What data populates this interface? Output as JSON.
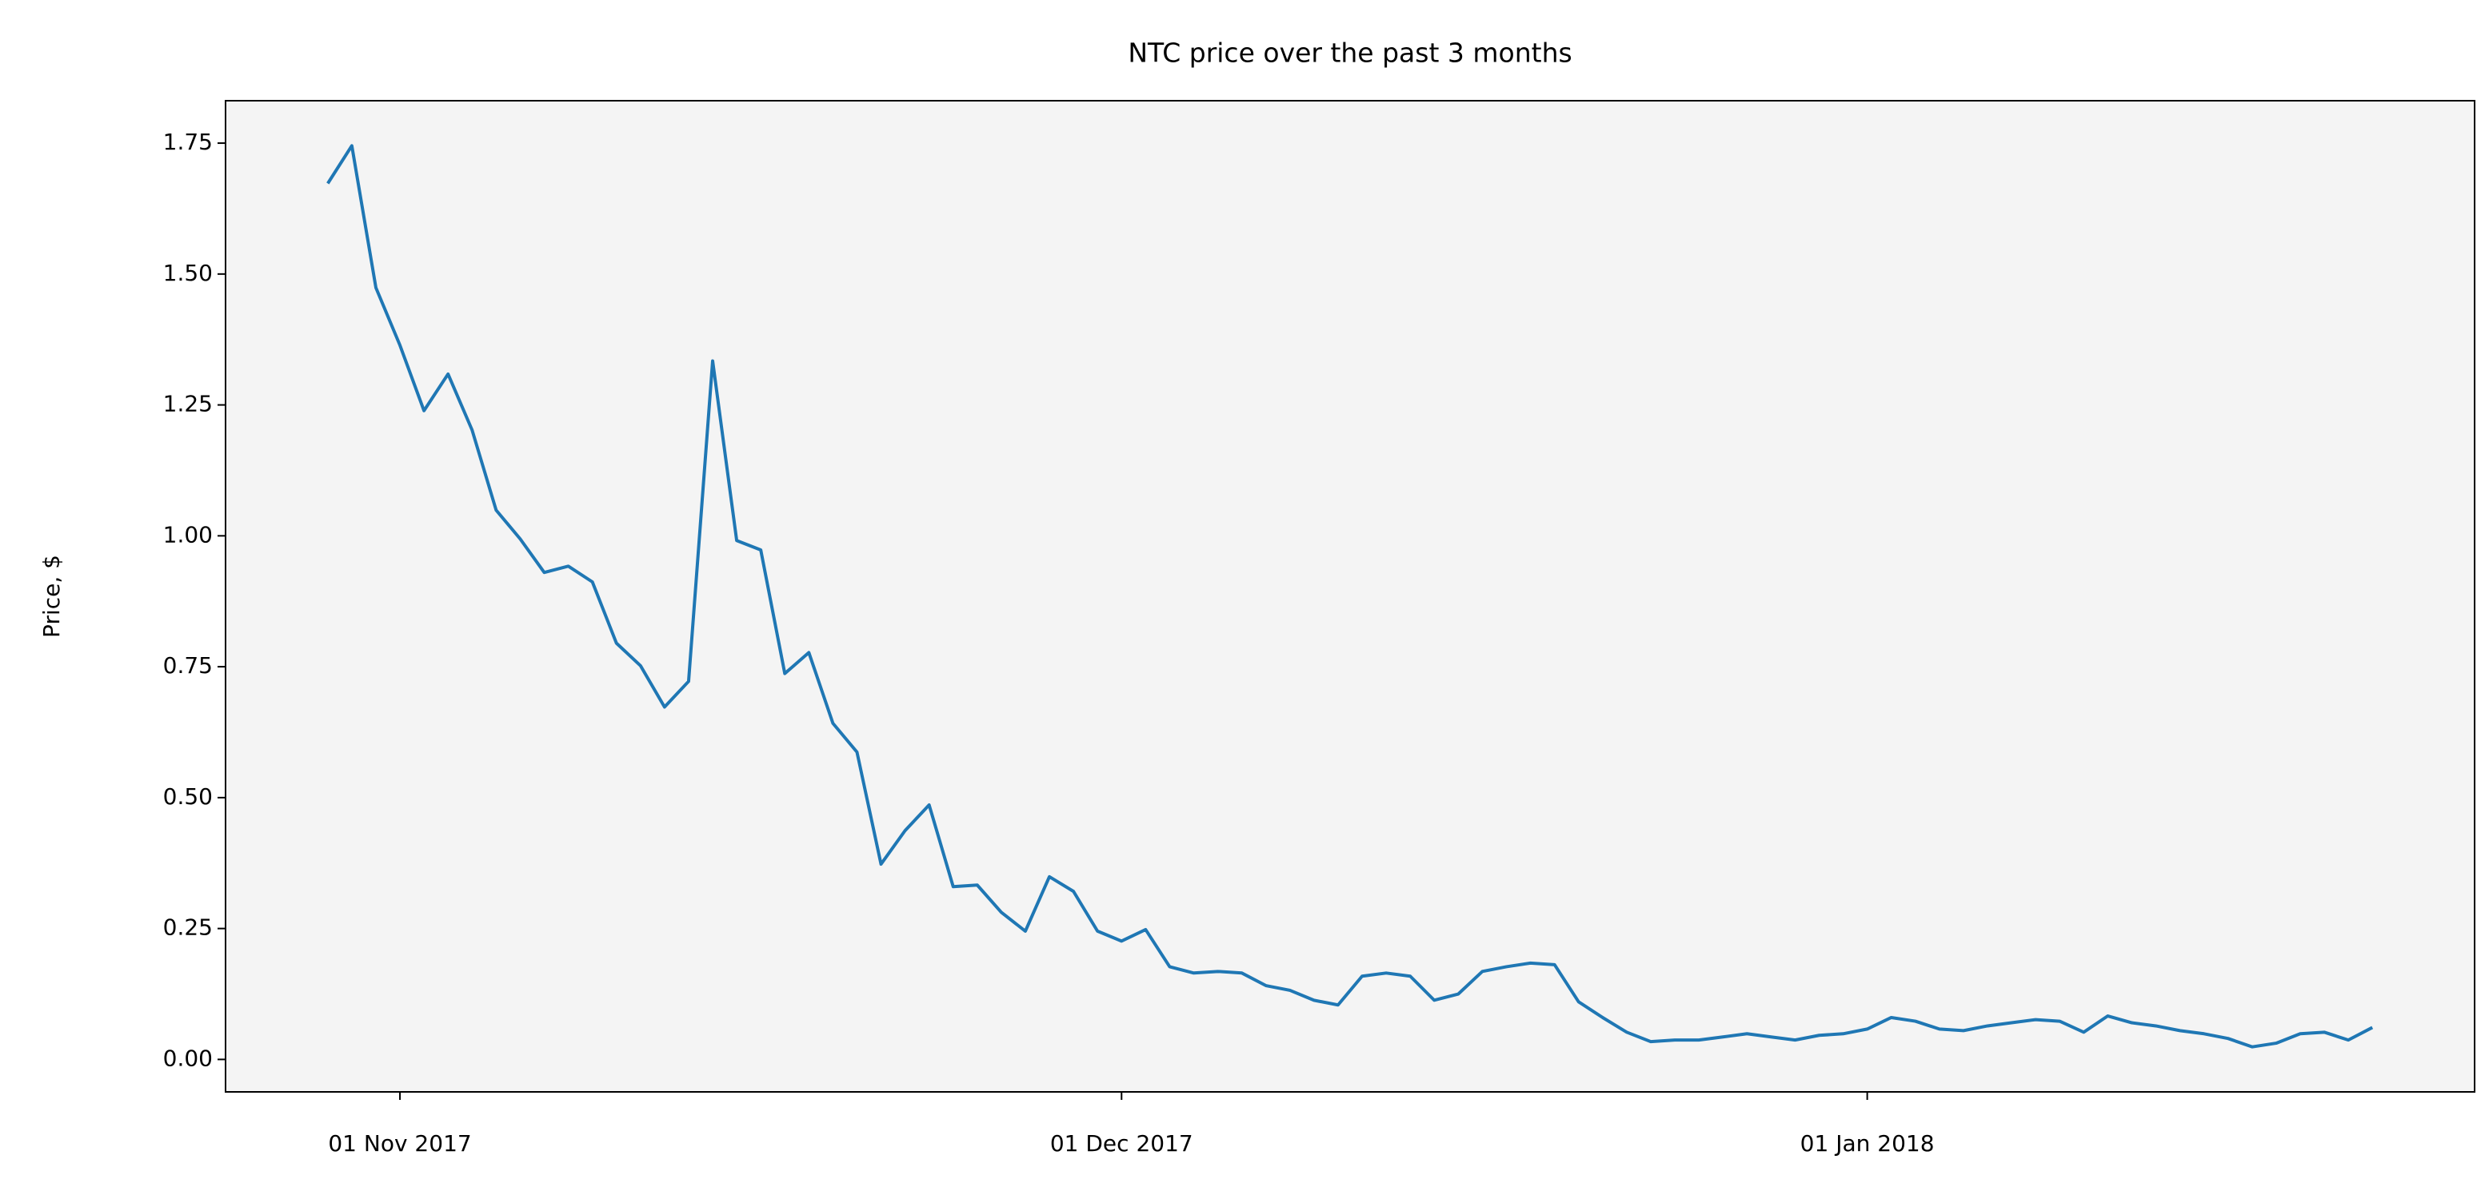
{
  "chart_data": {
    "type": "line",
    "title": "NTC price over the past 3 months",
    "y_label": "Price, $",
    "x": [
      "2017-10-29",
      "2017-10-30",
      "2017-10-31",
      "2017-11-01",
      "2017-11-02",
      "2017-11-03",
      "2017-11-04",
      "2017-11-05",
      "2017-11-06",
      "2017-11-07",
      "2017-11-08",
      "2017-11-09",
      "2017-11-10",
      "2017-11-11",
      "2017-11-12",
      "2017-11-13",
      "2017-11-14",
      "2017-11-15",
      "2017-11-16",
      "2017-11-17",
      "2017-11-18",
      "2017-11-19",
      "2017-11-20",
      "2017-11-21",
      "2017-11-22",
      "2017-11-23",
      "2017-11-24",
      "2017-11-25",
      "2017-11-26",
      "2017-11-27",
      "2017-11-28",
      "2017-11-29",
      "2017-11-30",
      "2017-12-01",
      "2017-12-02",
      "2017-12-03",
      "2017-12-04",
      "2017-12-05",
      "2017-12-06",
      "2017-12-07",
      "2017-12-08",
      "2017-12-09",
      "2017-12-10",
      "2017-12-11",
      "2017-12-12",
      "2017-12-13",
      "2017-12-14",
      "2017-12-15",
      "2017-12-16",
      "2017-12-17",
      "2017-12-18",
      "2017-12-19",
      "2017-12-20",
      "2017-12-21",
      "2017-12-22",
      "2017-12-23",
      "2017-12-24",
      "2017-12-25",
      "2017-12-26",
      "2017-12-27",
      "2017-12-28",
      "2017-12-29",
      "2017-12-30",
      "2017-12-31",
      "2018-01-01",
      "2018-01-02",
      "2018-01-03",
      "2018-01-04",
      "2018-01-05",
      "2018-01-06",
      "2018-01-07",
      "2018-01-08",
      "2018-01-09",
      "2018-01-10",
      "2018-01-11",
      "2018-01-12",
      "2018-01-13",
      "2018-01-14",
      "2018-01-15",
      "2018-01-16",
      "2018-01-17",
      "2018-01-18",
      "2018-01-19",
      "2018-01-20",
      "2018-01-21",
      "2018-01-22"
    ],
    "series": [
      {
        "name": "NTC",
        "color": "#1f77b4",
        "values": [
          1.673,
          1.745,
          1.474,
          1.364,
          1.239,
          1.309,
          1.202,
          1.049,
          0.994,
          0.93,
          0.942,
          0.912,
          0.795,
          0.752,
          0.673,
          0.722,
          1.334,
          0.991,
          0.973,
          0.737,
          0.777,
          0.642,
          0.587,
          0.373,
          0.437,
          0.486,
          0.33,
          0.333,
          0.281,
          0.245,
          0.349,
          0.321,
          0.245,
          0.226,
          0.248,
          0.177,
          0.165,
          0.168,
          0.165,
          0.141,
          0.132,
          0.113,
          0.104,
          0.159,
          0.165,
          0.159,
          0.113,
          0.125,
          0.168,
          0.177,
          0.184,
          0.181,
          0.11,
          0.08,
          0.052,
          0.034,
          0.037,
          0.037,
          0.043,
          0.049,
          0.043,
          0.037,
          0.046,
          0.049,
          0.058,
          0.08,
          0.073,
          0.058,
          0.055,
          0.064,
          0.07,
          0.076,
          0.073,
          0.052,
          0.083,
          0.07,
          0.064,
          0.055,
          0.049,
          0.04,
          0.024,
          0.031,
          0.049,
          0.052,
          0.037,
          0.061
        ]
      }
    ],
    "xlim": [
      "2017-10-24T18:00",
      "2018-01-26T06:00"
    ],
    "xticks": [
      {
        "value": "2017-11-01",
        "label": "01 Nov 2017"
      },
      {
        "value": "2017-12-01",
        "label": "01 Dec 2017"
      },
      {
        "value": "2018-01-01",
        "label": "01 Jan 2018"
      }
    ],
    "ylim": [
      -0.062,
      1.831
    ],
    "yticks": [
      {
        "value": 0,
        "label": "0.00"
      },
      0.25,
      {
        "value": 0.5,
        "label": "0.50"
      },
      0.75,
      {
        "value": 1,
        "label": "1.00"
      },
      1.25,
      {
        "value": 1.5,
        "label": "1.50"
      },
      1.75
    ],
    "grid": false,
    "background": "#f4f4f4"
  }
}
